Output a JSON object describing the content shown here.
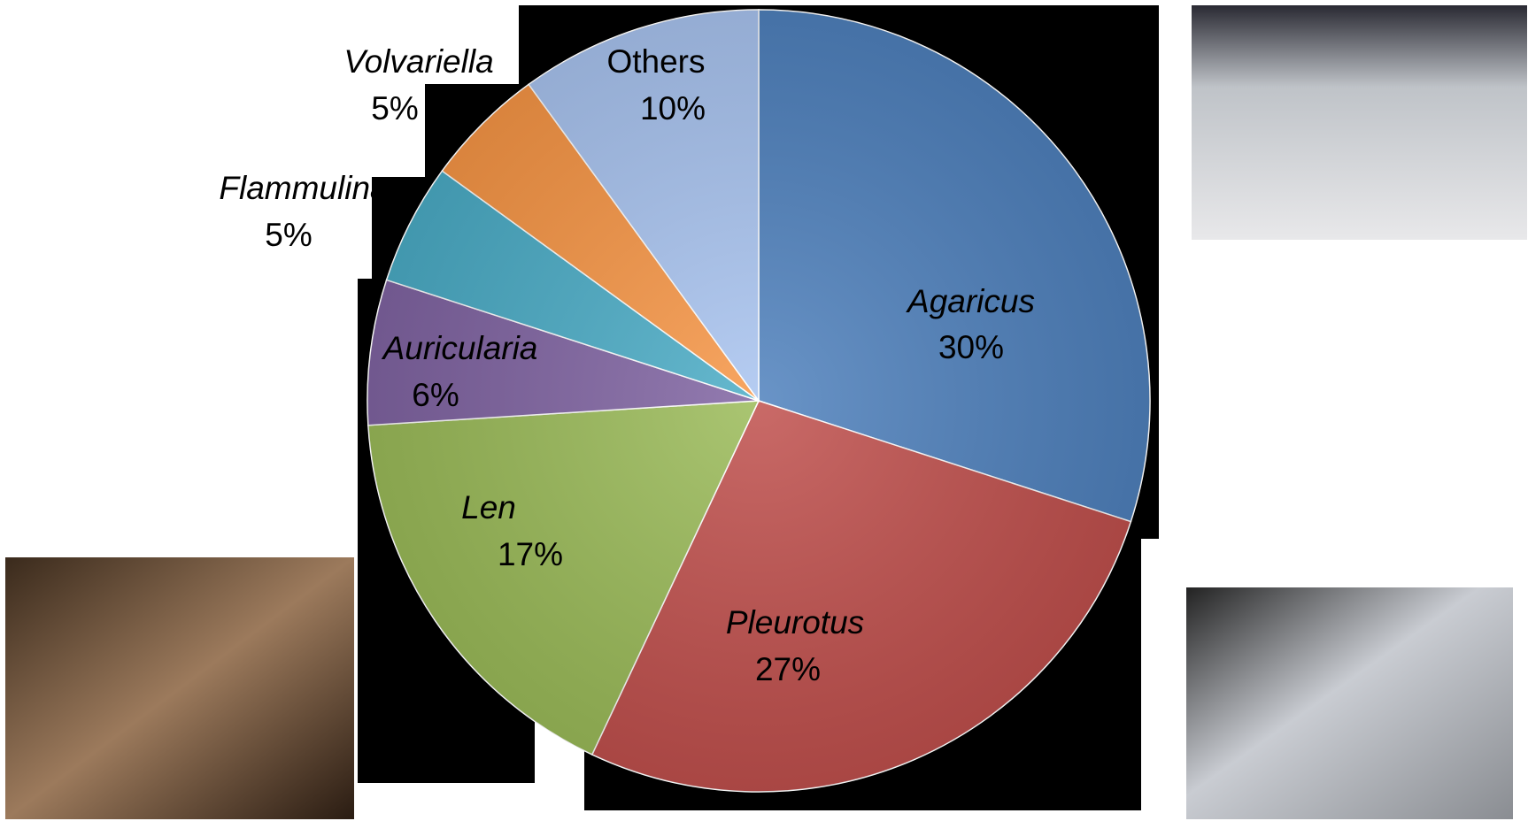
{
  "chart_data": {
    "type": "pie",
    "categories": [
      "Agaricus",
      "Pleurotus",
      "Len",
      "Auricularia",
      "Flammulina",
      "Volvariella",
      "Others"
    ],
    "values": [
      30,
      27,
      17,
      6,
      5,
      5,
      10
    ],
    "value_labels": [
      "30%",
      "27%",
      "17%",
      "6%",
      "5%",
      "5%",
      "10%"
    ],
    "colors": [
      "#4f81bd",
      "#c0504d",
      "#9bbb59",
      "#8064a2",
      "#4bacc6",
      "#f79646",
      "#a9c4f0"
    ]
  }
}
